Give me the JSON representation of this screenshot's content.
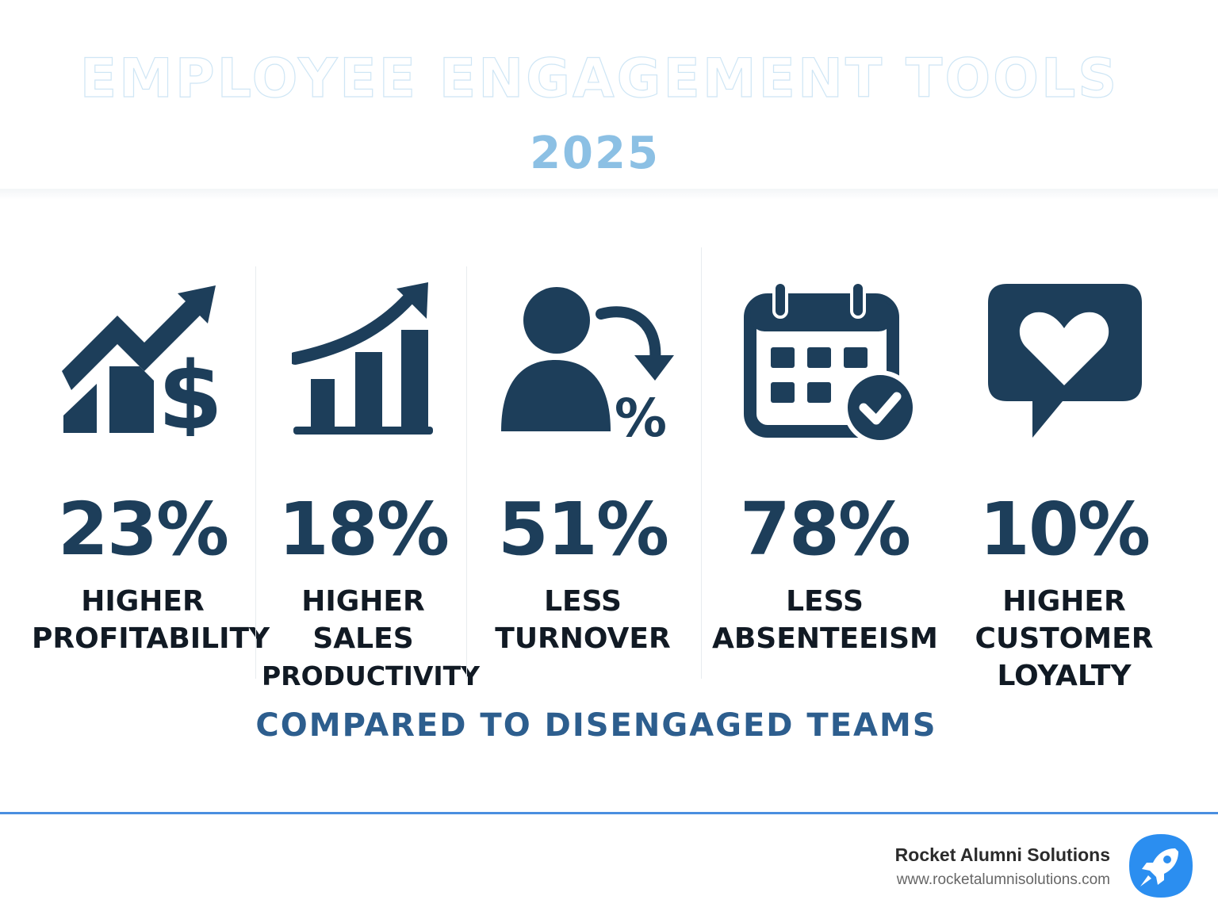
{
  "header": {
    "title": "EMPLOYEE ENGAGEMENT TOOLS",
    "year": "2025"
  },
  "stats": [
    {
      "value": "23%",
      "label_lines": [
        "HIGHER",
        "PROFITABILITY"
      ],
      "icon": "profit-chart-dollar-icon"
    },
    {
      "value": "18%",
      "label_lines": [
        "HIGHER",
        "SALES",
        "PRODUCTIVITY"
      ],
      "icon": "sales-growth-chart-icon"
    },
    {
      "value": "51%",
      "label_lines": [
        "LESS",
        "TURNOVER"
      ],
      "icon": "person-turnover-percent-icon"
    },
    {
      "value": "78%",
      "label_lines": [
        "LESS",
        "ABSENTEEISM"
      ],
      "icon": "calendar-check-icon"
    },
    {
      "value": "10%",
      "label_lines": [
        "HIGHER",
        "CUSTOMER",
        "LOYALTY"
      ],
      "icon": "heart-speech-bubble-icon"
    }
  ],
  "comparison": "COMPARED TO DISENGAGED TEAMS",
  "footer": {
    "brand": "Rocket Alumni Solutions",
    "url": "www.rocketalumnisolutions.com",
    "logo_icon": "rocket-icon"
  },
  "colors": {
    "icon": "#1d3e5a",
    "value": "#1d3e5a",
    "accent": "#2d5e8e",
    "year": "#8cc0e4",
    "footer_line": "#4a8fe0",
    "logo": "#2b8ef0"
  }
}
